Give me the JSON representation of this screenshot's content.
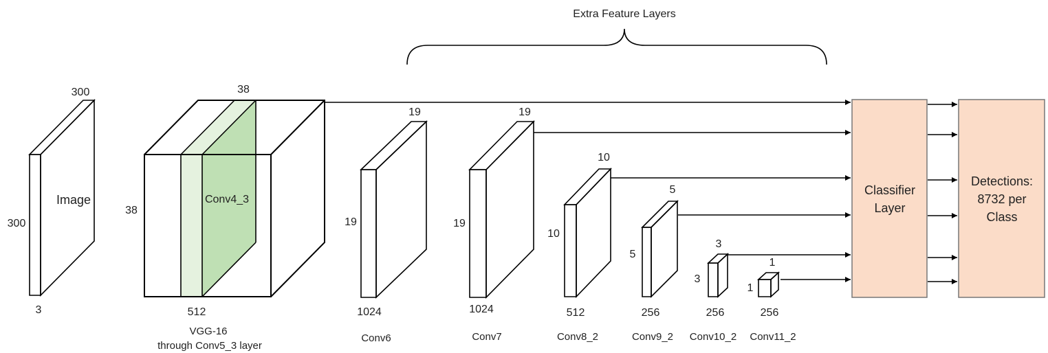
{
  "title": "Extra Feature Layers",
  "image": {
    "name": "Image",
    "width": "300",
    "height": "300",
    "channels": "3"
  },
  "vgg": {
    "name_line1": "VGG-16",
    "name_line2": "through Conv5_3 layer",
    "conv_label": "Conv4_3",
    "size_top": "38",
    "size_left": "38",
    "channels": "512"
  },
  "layers": [
    {
      "name": "Conv6",
      "size": "19",
      "channels": "1024"
    },
    {
      "name": "Conv7",
      "size": "19",
      "channels": "1024"
    },
    {
      "name": "Conv8_2",
      "size": "10",
      "channels": "512"
    },
    {
      "name": "Conv9_2",
      "size": "5",
      "channels": "256"
    },
    {
      "name": "Conv10_2",
      "size": "3",
      "channels": "256"
    },
    {
      "name": "Conv11_2",
      "size": "1",
      "channels": "256"
    }
  ],
  "classifier": {
    "line1": "Classifier",
    "line2": "Layer"
  },
  "detections": {
    "line1": "Detections:",
    "line2": "8732 per",
    "line3": "Class"
  },
  "colors": {
    "image_face": "#a9d4ee",
    "image_side": "#dcecf8",
    "feature_face": "#bfe0b4",
    "feature_side": "#e5f2df",
    "box_fill": "#fbdcc8",
    "box_stroke": "#777777"
  }
}
